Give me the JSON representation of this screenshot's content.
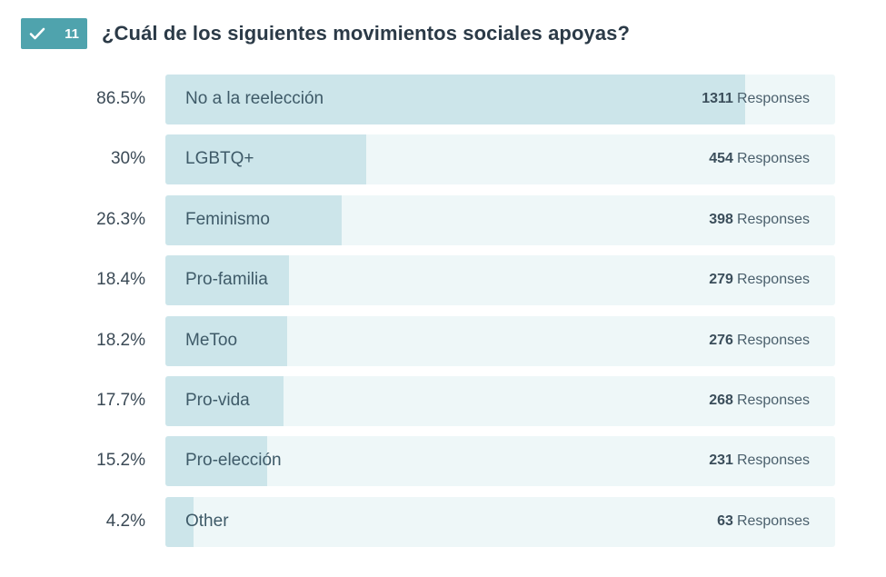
{
  "header": {
    "badge_number": "11",
    "title": "¿Cuál de los siguientes movimientos sociales apoyas?",
    "badge_icon": "checkmark-icon",
    "badge_color": "#4fa3ad"
  },
  "colors": {
    "track": "#eef7f8",
    "fill": "#cce5ea"
  },
  "chart_data": {
    "type": "bar",
    "orientation": "horizontal",
    "title": "¿Cuál de los siguientes movimientos sociales apoyas?",
    "categories": [
      "No a la reelección",
      "LGBTQ+",
      "Feminismo",
      "Pro-familia",
      "MeToo",
      "Pro-vida",
      "Pro-elección",
      "Other"
    ],
    "percent_labels": [
      "86.5%",
      "30%",
      "26.3%",
      "18.4%",
      "18.2%",
      "17.7%",
      "15.2%",
      "4.2%"
    ],
    "percentages": [
      86.5,
      30,
      26.3,
      18.4,
      18.2,
      17.7,
      15.2,
      4.2
    ],
    "responses": [
      1311,
      454,
      398,
      279,
      276,
      268,
      231,
      63
    ],
    "responses_unit": "Responses",
    "xlim": [
      0,
      100
    ]
  }
}
